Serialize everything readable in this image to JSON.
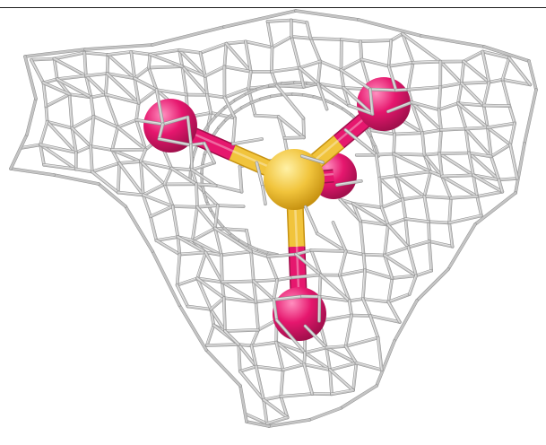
{
  "scene": {
    "background_color": "#ffffff",
    "frame_line_color": "#1e1e1e",
    "mesh": {
      "color": "#c4c4c4",
      "highlight_color": "#e6e6e6",
      "shadow_color": "#8e8e8e"
    },
    "molecule": {
      "central_atom": {
        "element": "S",
        "color": "#f1c43c",
        "highlight": "#fff1a6",
        "shadow": "#c69110"
      },
      "ligand_atoms": [
        {
          "element": "O",
          "color": "#e6176e",
          "highlight": "#ff8fbf",
          "shadow": "#a00f4b"
        },
        {
          "element": "O",
          "color": "#e6176e",
          "highlight": "#ff8fbf",
          "shadow": "#a00f4b"
        },
        {
          "element": "O",
          "color": "#e6176e",
          "highlight": "#ff8fbf",
          "shadow": "#a00f4b"
        },
        {
          "element": "O",
          "color": "#e6176e",
          "highlight": "#ff8fbf",
          "shadow": "#a00f4b"
        }
      ]
    }
  }
}
